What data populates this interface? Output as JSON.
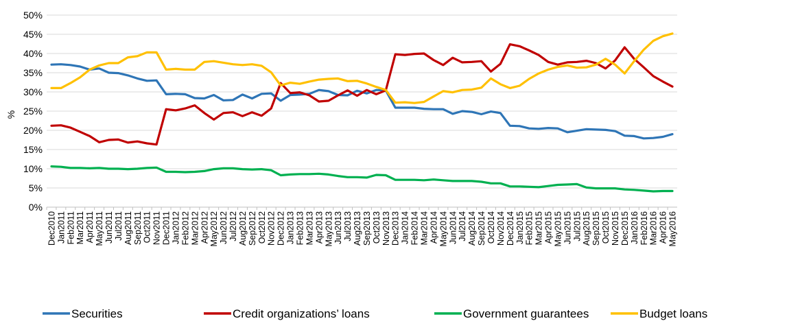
{
  "chart_data": {
    "type": "line",
    "ylabel": "%",
    "ylim": [
      0,
      50
    ],
    "ytick_step": 5,
    "ytick_format": "{v}%",
    "grid": true,
    "legend_position": "bottom",
    "categories": [
      "Dec2010",
      "Jan2011",
      "Feb2011",
      "Mar2011",
      "Apr2011",
      "May2011",
      "Jun2011",
      "Jul2011",
      "Aug2011",
      "Sep2011",
      "Oct2011",
      "Nov2011",
      "Dec2011",
      "Jan2012",
      "Feb2012",
      "Mar2012",
      "Apr2012",
      "May2012",
      "Jun2012",
      "Jul2012",
      "Aug2012",
      "Sep2012",
      "Oct2012",
      "Nov2012",
      "Dec2012",
      "Jan2013",
      "Feb2013",
      "Mar2013",
      "Apr2013",
      "May2013",
      "Jun2013",
      "Jul2013",
      "Aug2013",
      "Sep2013",
      "Oct2013",
      "Nov2013",
      "Dec2013",
      "Jan2014",
      "Feb2014",
      "Mar2014",
      "Apr2014",
      "May2014",
      "Jun2014",
      "Jul2014",
      "Aug2014",
      "Sep2014",
      "Oct2014",
      "Nov2014",
      "Dec2014",
      "Jan2015",
      "Feb2015",
      "Mar2015",
      "Apr2015",
      "May2015",
      "Jun2015",
      "Jul2015",
      "Aug2015",
      "Sep2015",
      "Oct2015",
      "Nov2015",
      "Dec2015",
      "Jan2016",
      "Feb2016",
      "Mar2016",
      "Apr2016",
      "May2016"
    ],
    "series": [
      {
        "name": "Securities",
        "color": "#2e75b6",
        "values": [
          37.1,
          37.2,
          37.0,
          36.6,
          35.8,
          36.1,
          35.0,
          34.9,
          34.3,
          33.5,
          32.9,
          33.0,
          29.4,
          29.5,
          29.4,
          28.4,
          28.3,
          29.2,
          27.8,
          27.9,
          29.3,
          28.3,
          29.5,
          29.6,
          27.7,
          29.2,
          29.3,
          29.5,
          30.5,
          30.2,
          29.2,
          29.1,
          30.3,
          29.6,
          30.5,
          30.4,
          25.9,
          25.9,
          25.9,
          25.6,
          25.5,
          25.5,
          24.3,
          25.0,
          24.8,
          24.2,
          24.9,
          24.5,
          21.2,
          21.1,
          20.5,
          20.4,
          20.6,
          20.5,
          19.5,
          19.9,
          20.3,
          20.2,
          20.1,
          19.8,
          18.6,
          18.5,
          17.9,
          18.0,
          18.3,
          19.0
        ]
      },
      {
        "name": "Credit organizations’ loans",
        "color": "#c00000",
        "values": [
          21.2,
          21.3,
          20.7,
          19.6,
          18.5,
          16.9,
          17.5,
          17.6,
          16.8,
          17.1,
          16.6,
          16.3,
          25.5,
          25.2,
          25.7,
          26.5,
          24.5,
          22.8,
          24.5,
          24.7,
          23.7,
          24.7,
          23.8,
          25.7,
          32.3,
          29.7,
          29.9,
          29.1,
          27.5,
          27.7,
          29.1,
          30.4,
          29.0,
          30.5,
          29.4,
          30.4,
          39.8,
          39.6,
          39.9,
          40.0,
          38.3,
          37.0,
          38.9,
          37.7,
          37.8,
          38.0,
          35.3,
          37.3,
          42.4,
          41.9,
          40.8,
          39.6,
          37.8,
          37.1,
          37.7,
          37.8,
          38.1,
          37.5,
          36.1,
          38.2,
          41.6,
          38.6,
          36.4,
          34.1,
          32.7,
          31.4
        ]
      },
      {
        "name": "Government guarantees",
        "color": "#00b050",
        "values": [
          10.6,
          10.5,
          10.2,
          10.2,
          10.1,
          10.2,
          10.0,
          10.0,
          9.9,
          10.0,
          10.2,
          10.3,
          9.2,
          9.2,
          9.1,
          9.2,
          9.4,
          9.9,
          10.1,
          10.1,
          9.9,
          9.8,
          9.9,
          9.6,
          8.3,
          8.5,
          8.6,
          8.6,
          8.7,
          8.5,
          8.1,
          7.8,
          7.8,
          7.7,
          8.4,
          8.3,
          7.1,
          7.1,
          7.1,
          7.0,
          7.2,
          7.0,
          6.8,
          6.8,
          6.8,
          6.6,
          6.2,
          6.2,
          5.4,
          5.4,
          5.3,
          5.2,
          5.5,
          5.8,
          5.9,
          6.0,
          5.1,
          4.9,
          4.9,
          4.9,
          4.6,
          4.5,
          4.3,
          4.1,
          4.2,
          4.2
        ]
      },
      {
        "name": "Budget loans",
        "color": "#ffc000",
        "values": [
          31.0,
          31.0,
          32.3,
          33.8,
          35.8,
          36.9,
          37.5,
          37.5,
          39.0,
          39.3,
          40.3,
          40.3,
          35.8,
          36.0,
          35.8,
          35.8,
          37.8,
          38.0,
          37.6,
          37.2,
          37.0,
          37.2,
          36.8,
          35.1,
          31.7,
          32.4,
          32.1,
          32.7,
          33.2,
          33.4,
          33.5,
          32.8,
          32.9,
          32.2,
          31.3,
          30.5,
          27.2,
          27.3,
          27.1,
          27.4,
          28.8,
          30.2,
          29.9,
          30.5,
          30.6,
          31.1,
          33.5,
          32.0,
          31.0,
          31.6,
          33.4,
          34.8,
          35.8,
          36.5,
          36.9,
          36.3,
          36.4,
          37.1,
          38.6,
          37.1,
          34.8,
          38.0,
          41.0,
          43.3,
          44.5,
          45.2
        ]
      }
    ]
  },
  "legend": {
    "items": [
      {
        "label": "Securities",
        "color": "#2e75b6"
      },
      {
        "label": "Credit organizations’ loans",
        "color": "#c00000"
      },
      {
        "label": "Government guarantees",
        "color": "#00b050"
      },
      {
        "label": "Budget loans",
        "color": "#ffc000"
      }
    ]
  }
}
